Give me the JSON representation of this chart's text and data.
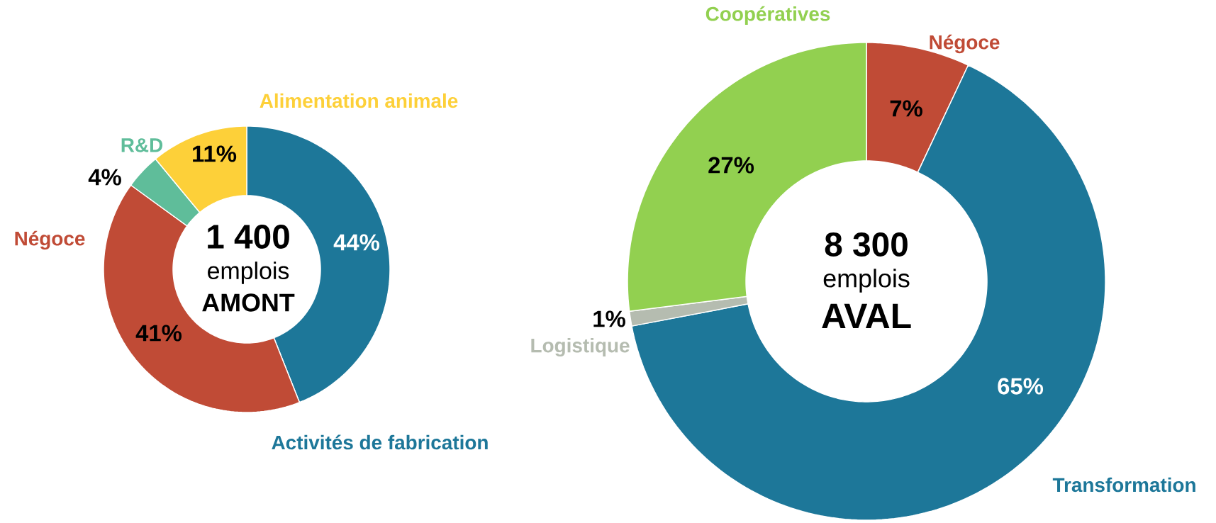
{
  "chart_data": [
    {
      "type": "donut",
      "categories": [
        "Activités de fabrication",
        "Négoce",
        "R&D",
        "Alimentation animale"
      ],
      "values": [
        44,
        41,
        4,
        11
      ],
      "colors": [
        "#1d7799",
        "#c04b36",
        "#5fbd9a",
        "#fdd039"
      ],
      "value_labels": [
        "44%",
        "41%",
        "4%",
        "11%"
      ],
      "annotations": [
        "1 400",
        "emplois",
        "AMONT"
      ]
    },
    {
      "type": "donut",
      "categories": [
        "Négoce",
        "Transformation",
        "Logistique",
        "Coopératives"
      ],
      "values": [
        7,
        65,
        1,
        27
      ],
      "colors": [
        "#c04b36",
        "#1d7799",
        "#b5bcb0",
        "#92d050"
      ],
      "value_labels": [
        "7%",
        "65%",
        "1%",
        "27%"
      ],
      "annotations": [
        "8 300",
        "emplois",
        "AVAL"
      ]
    }
  ]
}
